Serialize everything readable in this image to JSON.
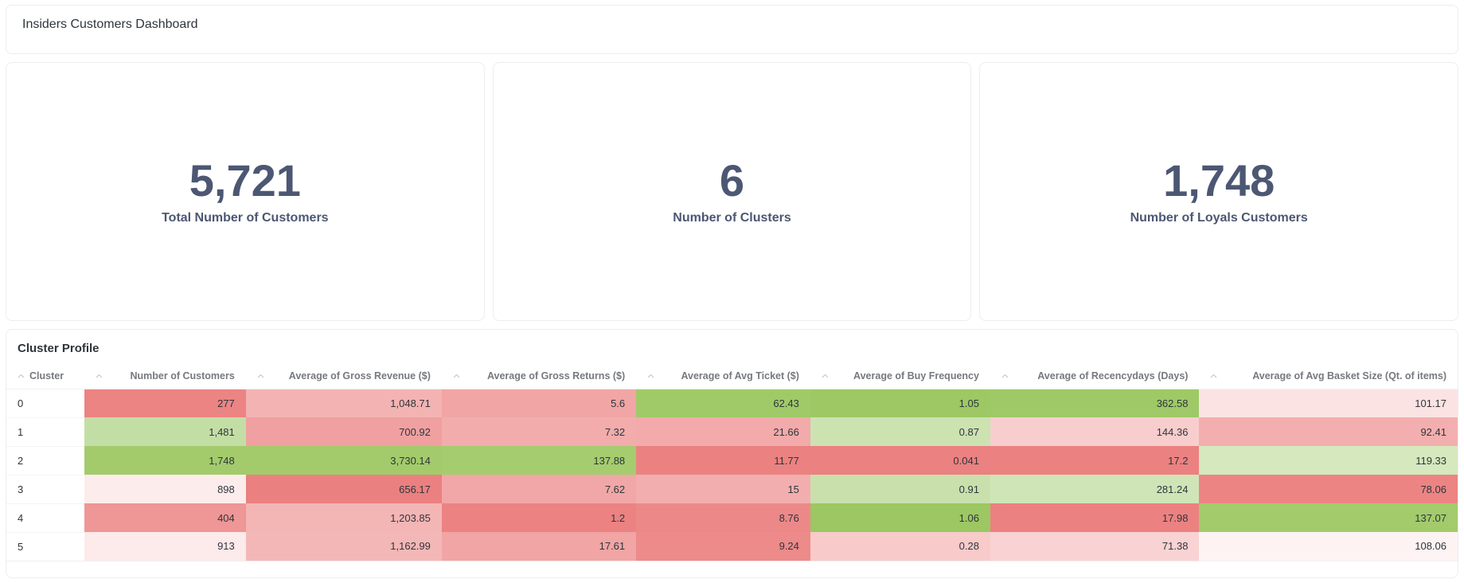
{
  "header": {
    "title": "Insiders Customers Dashboard"
  },
  "cards": [
    {
      "value": "5,721",
      "label": "Total Number of Customers"
    },
    {
      "value": "6",
      "label": "Number of Clusters"
    },
    {
      "value": "1,748",
      "label": "Number of Loyals Customers"
    }
  ],
  "table": {
    "title": "Cluster Profile",
    "columns": [
      "Cluster",
      "Number of Customers",
      "Average of Gross Revenue ($)",
      "Average of Gross Returns ($)",
      "Average of Avg Ticket ($)",
      "Average of Buy Frequency",
      "Average of Recencydays (Days)",
      "Average of Avg Basket Size (Qt. of items)"
    ],
    "rows": [
      {
        "cluster": "0",
        "cells": [
          {
            "v": "277",
            "bg": "#EC8484"
          },
          {
            "v": "1,048.71",
            "bg": "#F4B3B3"
          },
          {
            "v": "5.6",
            "bg": "#F1A5A5"
          },
          {
            "v": "62.43",
            "bg": "#A0CA68"
          },
          {
            "v": "1.05",
            "bg": "#9DC864"
          },
          {
            "v": "362.58",
            "bg": "#9FC966"
          },
          {
            "v": "101.17",
            "bg": "#FBE3E3"
          }
        ]
      },
      {
        "cluster": "1",
        "cells": [
          {
            "v": "1,481",
            "bg": "#C3DEA5"
          },
          {
            "v": "700.92",
            "bg": "#F0A0A0"
          },
          {
            "v": "7.32",
            "bg": "#F2ACAC"
          },
          {
            "v": "21.66",
            "bg": "#F2AAAA"
          },
          {
            "v": "0.87",
            "bg": "#CCE2B1"
          },
          {
            "v": "144.36",
            "bg": "#F8CDCD"
          },
          {
            "v": "92.41",
            "bg": "#F3AFAF"
          }
        ]
      },
      {
        "cluster": "2",
        "cells": [
          {
            "v": "1,748",
            "bg": "#A3CB6C"
          },
          {
            "v": "3,730.14",
            "bg": "#A3CB6C"
          },
          {
            "v": "137.88",
            "bg": "#A5CC6F"
          },
          {
            "v": "11.77",
            "bg": "#EC8181"
          },
          {
            "v": "0.041",
            "bg": "#EC8181"
          },
          {
            "v": "17.2",
            "bg": "#EC8181"
          },
          {
            "v": "119.33",
            "bg": "#D5E8BE"
          }
        ]
      },
      {
        "cluster": "3",
        "cells": [
          {
            "v": "898",
            "bg": "#FDECEC"
          },
          {
            "v": "656.17",
            "bg": "#EB8080"
          },
          {
            "v": "7.62",
            "bg": "#F1A7A7"
          },
          {
            "v": "15",
            "bg": "#F2AEAE"
          },
          {
            "v": "0.91",
            "bg": "#C9E0AD"
          },
          {
            "v": "281.24",
            "bg": "#D0E5B7"
          },
          {
            "v": "78.06",
            "bg": "#EC8484"
          }
        ]
      },
      {
        "cluster": "4",
        "cells": [
          {
            "v": "404",
            "bg": "#EF9696"
          },
          {
            "v": "1,203.85",
            "bg": "#F4B5B5"
          },
          {
            "v": "1.2",
            "bg": "#EC8282"
          },
          {
            "v": "8.76",
            "bg": "#ED8888"
          },
          {
            "v": "1.06",
            "bg": "#9CC763"
          },
          {
            "v": "17.98",
            "bg": "#EC8181"
          },
          {
            "v": "137.07",
            "bg": "#A3CB6C"
          }
        ]
      },
      {
        "cluster": "5",
        "cells": [
          {
            "v": "913",
            "bg": "#FDEAEA"
          },
          {
            "v": "1,162.99",
            "bg": "#F4B7B7"
          },
          {
            "v": "17.61",
            "bg": "#F1A5A5"
          },
          {
            "v": "9.24",
            "bg": "#ED8A8A"
          },
          {
            "v": "0.28",
            "bg": "#F8CACA"
          },
          {
            "v": "71.38",
            "bg": "#F9D3D3"
          },
          {
            "v": "108.06",
            "bg": "#FDF3F3"
          }
        ]
      }
    ]
  },
  "colors": {
    "scalar_text": "#4C5773",
    "header_text": "#76797E",
    "card_border": "#EDEDF0",
    "heatmap_low": "#EC8181",
    "heatmap_high": "#A3CB6C",
    "sort_caret": "#C9CED4"
  },
  "icons": {
    "sort_caret": "chevron-up"
  }
}
